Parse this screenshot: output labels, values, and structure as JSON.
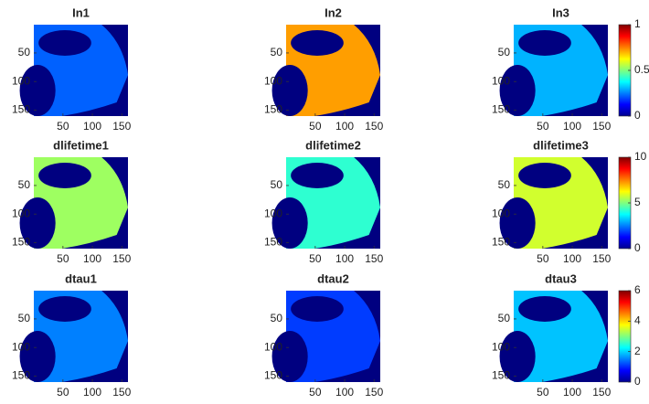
{
  "chart_data": [
    {
      "type": "image",
      "title": "In1",
      "xlim": [
        0.5,
        160.5
      ],
      "ylim": [
        0.5,
        160.5
      ],
      "xticks": [
        50,
        100,
        150
      ],
      "yticks": [
        50,
        100,
        150
      ],
      "clim": [
        0,
        1
      ],
      "values": [
        0.22
      ],
      "colorbar": false
    },
    {
      "type": "image",
      "title": "In2",
      "xlim": [
        0.5,
        160.5
      ],
      "ylim": [
        0.5,
        160.5
      ],
      "xticks": [
        50,
        100,
        150
      ],
      "yticks": [
        50,
        100,
        150
      ],
      "clim": [
        0,
        1
      ],
      "values": [
        0.72
      ],
      "colorbar": false
    },
    {
      "type": "image",
      "title": "In3",
      "xlim": [
        0.5,
        160.5
      ],
      "ylim": [
        0.5,
        160.5
      ],
      "xticks": [
        50,
        100,
        150
      ],
      "yticks": [
        50,
        100,
        150
      ],
      "clim": [
        0,
        1
      ],
      "values": [
        0.3
      ],
      "colorbar": true,
      "cticks": [
        0,
        0.5,
        1
      ]
    },
    {
      "type": "image",
      "title": "dlifetime1",
      "xlim": [
        0.5,
        160.5
      ],
      "ylim": [
        0.5,
        160.5
      ],
      "xticks": [
        50,
        100,
        150
      ],
      "yticks": [
        50,
        100,
        150
      ],
      "clim": [
        0,
        10
      ],
      "values": [
        5.3
      ],
      "colorbar": false
    },
    {
      "type": "image",
      "title": "dlifetime2",
      "xlim": [
        0.5,
        160.5
      ],
      "ylim": [
        0.5,
        160.5
      ],
      "xticks": [
        50,
        100,
        150
      ],
      "yticks": [
        50,
        100,
        150
      ],
      "clim": [
        0,
        10
      ],
      "values": [
        4.2
      ],
      "colorbar": false
    },
    {
      "type": "image",
      "title": "dlifetime3",
      "xlim": [
        0.5,
        160.5
      ],
      "ylim": [
        0.5,
        160.5
      ],
      "xticks": [
        50,
        100,
        150
      ],
      "yticks": [
        50,
        100,
        150
      ],
      "clim": [
        0,
        10
      ],
      "values": [
        5.8
      ],
      "colorbar": true,
      "cticks": [
        0,
        5,
        10
      ]
    },
    {
      "type": "image",
      "title": "dtau1",
      "xlim": [
        0.5,
        160.5
      ],
      "ylim": [
        0.5,
        160.5
      ],
      "xticks": [
        50,
        100,
        150
      ],
      "yticks": [
        50,
        100,
        150
      ],
      "clim": [
        0,
        6
      ],
      "values": [
        1.5
      ],
      "colorbar": false
    },
    {
      "type": "image",
      "title": "dtau2",
      "xlim": [
        0.5,
        160.5
      ],
      "ylim": [
        0.5,
        160.5
      ],
      "xticks": [
        50,
        100,
        150
      ],
      "yticks": [
        50,
        100,
        150
      ],
      "clim": [
        0,
        6
      ],
      "values": [
        1.1
      ],
      "colorbar": false
    },
    {
      "type": "image",
      "title": "dtau3",
      "xlim": [
        0.5,
        160.5
      ],
      "ylim": [
        0.5,
        160.5
      ],
      "xticks": [
        50,
        100,
        150
      ],
      "yticks": [
        50,
        100,
        150
      ],
      "clim": [
        0,
        6
      ],
      "values": [
        1.9
      ],
      "colorbar": true,
      "cticks": [
        0,
        2,
        4,
        6
      ]
    }
  ]
}
